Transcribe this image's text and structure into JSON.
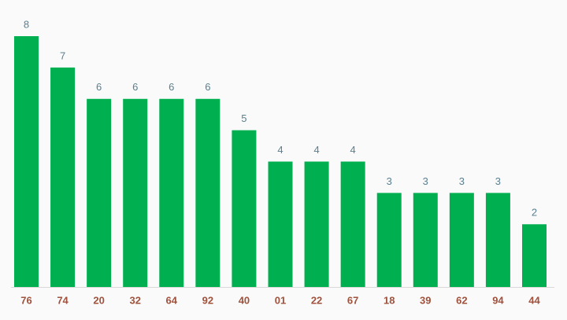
{
  "chart_data": {
    "type": "bar",
    "categories": [
      "76",
      "74",
      "20",
      "32",
      "64",
      "92",
      "40",
      "01",
      "22",
      "67",
      "18",
      "39",
      "62",
      "94",
      "44"
    ],
    "values": [
      8,
      7,
      6,
      6,
      6,
      6,
      5,
      4,
      4,
      4,
      3,
      3,
      3,
      3,
      2
    ],
    "color": "#00b050"
  }
}
